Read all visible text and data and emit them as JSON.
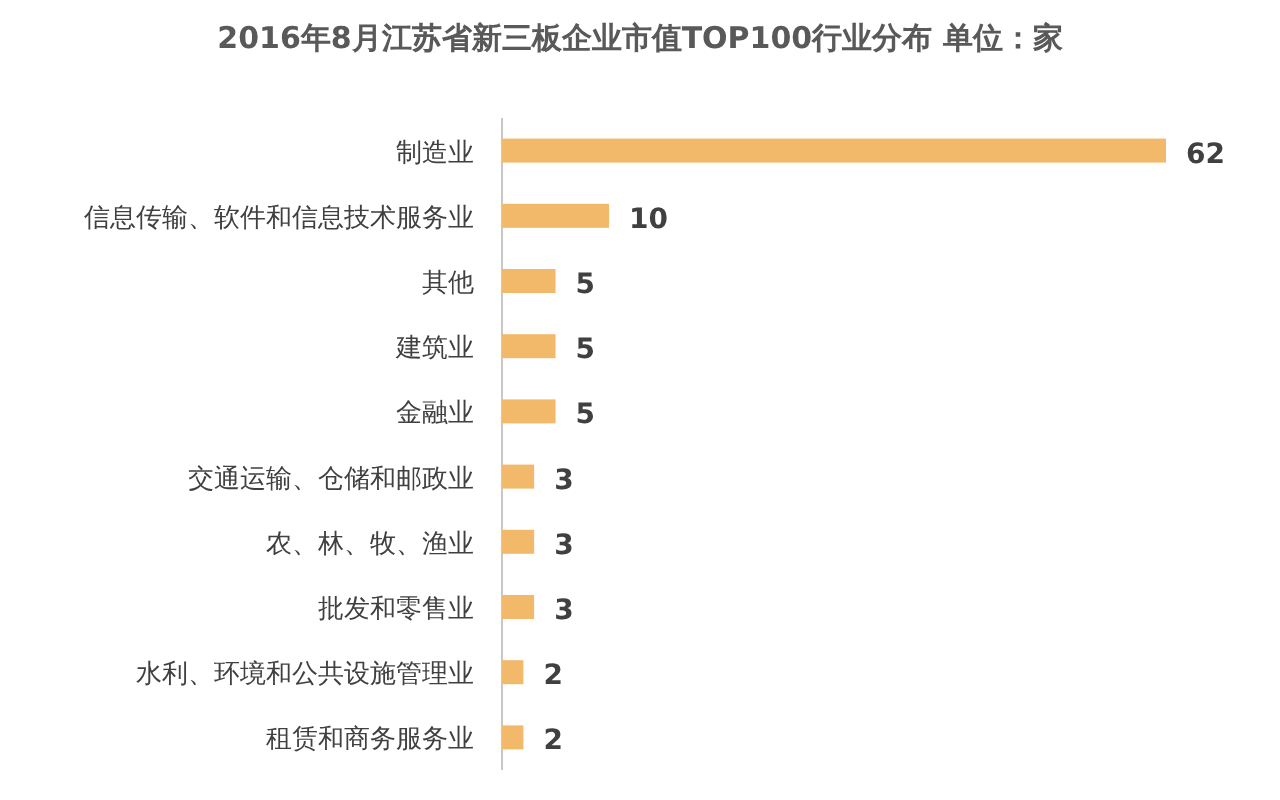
{
  "chart_data": {
    "type": "bar",
    "orientation": "horizontal",
    "title": "2016年8月江苏省新三板企业市值TOP100行业分布 单位：家",
    "categories": [
      "制造业",
      "信息传输、软件和信息技术服务业",
      "其他",
      "建筑业",
      "金融业",
      "交通运输、仓储和邮政业",
      "农、林、牧、渔业",
      "批发和零售业",
      "水利、环境和公共设施管理业",
      "租赁和商务服务业"
    ],
    "values": [
      62,
      10,
      5,
      5,
      5,
      3,
      3,
      3,
      2,
      2
    ],
    "color": "#f3b96a",
    "data_labels": true
  }
}
